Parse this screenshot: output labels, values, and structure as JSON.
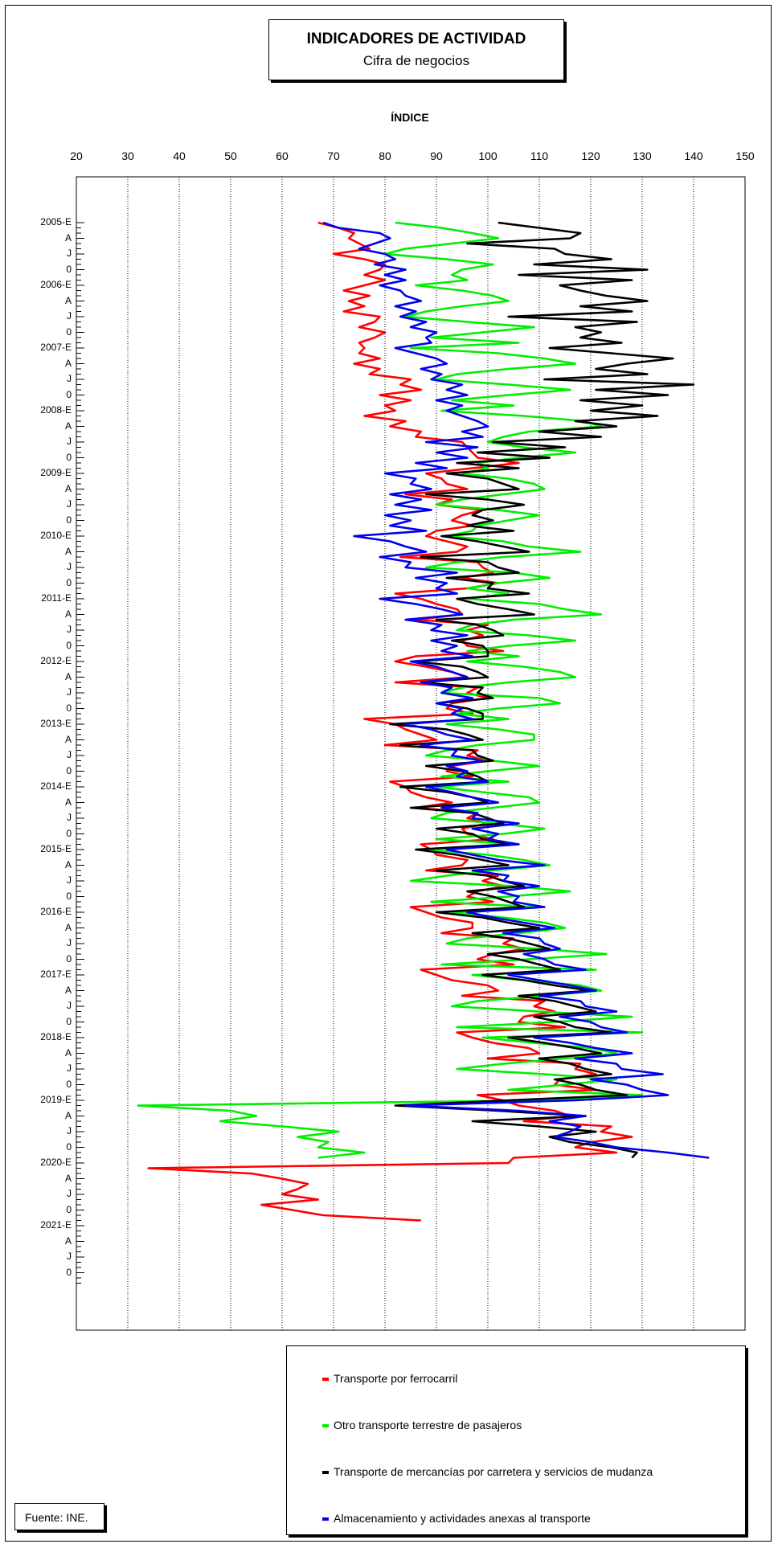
{
  "title": "INDICADORES DE ACTIVIDAD",
  "subtitle": "Cifra de negocios",
  "source": "Fuente: INE.",
  "chart_data": {
    "type": "line",
    "title": "INDICADORES DE ACTIVIDAD",
    "subtitle": "Cifra de negocios",
    "xlabel": "ÍNDICE",
    "ylabel": "",
    "orientation": "vertical-time",
    "xlim": [
      20,
      150
    ],
    "x_ticks": [
      20,
      30,
      40,
      50,
      60,
      70,
      80,
      90,
      100,
      110,
      120,
      130,
      140,
      150
    ],
    "time_range": [
      "2005-01",
      "2021-12"
    ],
    "y_tick_labels": [
      "2005-E",
      "A",
      "J",
      "0",
      "2006-E",
      "A",
      "J",
      "0",
      "2007-E",
      "A",
      "J",
      "0",
      "2008-E",
      "A",
      "J",
      "0",
      "2009-E",
      "A",
      "J",
      "0",
      "2010-E",
      "A",
      "J",
      "0",
      "2011-E",
      "A",
      "J",
      "0",
      "2012-E",
      "A",
      "J",
      "0",
      "2013-E",
      "A",
      "J",
      "0",
      "2014-E",
      "A",
      "J",
      "0",
      "2015-E",
      "A",
      "J",
      "0",
      "2016-E",
      "A",
      "J",
      "0",
      "2017-E",
      "A",
      "J",
      "0",
      "2018-E",
      "A",
      "J",
      "0",
      "2019-E",
      "A",
      "J",
      "0",
      "2020-E",
      "A",
      "J",
      "0",
      "2021-E",
      "A",
      "J",
      "0"
    ],
    "grid": true,
    "legend_position": "bottom",
    "series": [
      {
        "name": "Transporte por ferrocarril",
        "color": "#ff0000",
        "start": "2005-01",
        "values": [
          67,
          71,
          74,
          73,
          75,
          77,
          70,
          76,
          80,
          79,
          76,
          80,
          76,
          72,
          77,
          73,
          76,
          72,
          79,
          78,
          75,
          80,
          78,
          75,
          76,
          75,
          79,
          74,
          79,
          77,
          85,
          83,
          87,
          79,
          85,
          80,
          82,
          76,
          84,
          81,
          87,
          86,
          95,
          96,
          97,
          98,
          106,
          97,
          88,
          91,
          92,
          96,
          84,
          93,
          90,
          99,
          95,
          93,
          97,
          90,
          88,
          92,
          96,
          94,
          83,
          98,
          99,
          101,
          95,
          102,
          96,
          82,
          87,
          90,
          94,
          95,
          86,
          100,
          96,
          99,
          95,
          96,
          103,
          86,
          82,
          88,
          93,
          96,
          82,
          98,
          96,
          100,
          93,
          92,
          97,
          76,
          82,
          84,
          87,
          90,
          80,
          98,
          96,
          100,
          93,
          92,
          97,
          81,
          84,
          85,
          88,
          93,
          86,
          98,
          96,
          100,
          95,
          96,
          101,
          87,
          89,
          90,
          96,
          95,
          88,
          102,
          99,
          103,
          98,
          96,
          101,
          85,
          88,
          91,
          97,
          97,
          91,
          105,
          103,
          107,
          101,
          98,
          105,
          87,
          90,
          93,
          100,
          102,
          95,
          111,
          109,
          113,
          107,
          106,
          115,
          94,
          97,
          101,
          108,
          110,
          100,
          118,
          117,
          121,
          114,
          113,
          121,
          98,
          103,
          106,
          113,
          116,
          107,
          124,
          122,
          128,
          120,
          117,
          125,
          105,
          104,
          34,
          54,
          60,
          65,
          63,
          60,
          67,
          56,
          62,
          68,
          87
        ]
      },
      {
        "name": "Otro transporte terrestre de pasajeros",
        "color": "#00ee00",
        "start": "2005-01",
        "values": [
          82,
          91,
          97,
          102,
          93,
          84,
          80,
          92,
          101,
          95,
          93,
          96,
          86,
          95,
          101,
          104,
          95,
          88,
          84,
          96,
          109,
          99,
          89,
          106,
          85,
          102,
          111,
          117,
          104,
          94,
          90,
          104,
          116,
          104,
          93,
          105,
          91,
          107,
          119,
          122,
          108,
          103,
          100,
          107,
          117,
          106,
          98,
          100,
          95,
          104,
          109,
          111,
          103,
          95,
          90,
          102,
          110,
          104,
          98,
          97,
          92,
          103,
          108,
          118,
          103,
          94,
          88,
          105,
          112,
          102,
          96,
          104,
          96,
          110,
          115,
          122,
          105,
          97,
          94,
          108,
          117,
          104,
          96,
          106,
          96,
          107,
          114,
          117,
          104,
          95,
          91,
          110,
          114,
          102,
          94,
          104,
          92,
          102,
          109,
          109,
          98,
          92,
          88,
          101,
          110,
          100,
          91,
          104,
          90,
          99,
          108,
          110,
          101,
          92,
          89,
          102,
          111,
          103,
          90,
          106,
          88,
          100,
          107,
          112,
          101,
          92,
          85,
          105,
          116,
          104,
          89,
          110,
          93,
          103,
          111,
          115,
          106,
          96,
          92,
          110,
          123,
          108,
          91,
          121,
          97,
          107,
          118,
          122,
          111,
          98,
          93,
          110,
          128,
          113,
          94,
          130,
          99,
          109,
          120,
          125,
          115,
          103,
          94,
          111,
          125,
          115,
          104,
          130,
          110,
          32,
          50,
          55,
          48,
          60,
          71,
          63,
          69,
          67,
          76,
          67
        ]
      },
      {
        "name": "Transporte de mercancías por carretera y servicios de mudanza",
        "color": "#000000",
        "start": "2005-01",
        "values": [
          102,
          110,
          118,
          116,
          96,
          113,
          115,
          124,
          109,
          131,
          106,
          128,
          114,
          118,
          123,
          131,
          118,
          128,
          104,
          129,
          117,
          122,
          118,
          126,
          112,
          124,
          136,
          127,
          121,
          131,
          111,
          140,
          121,
          135,
          118,
          130,
          120,
          133,
          117,
          125,
          110,
          122,
          101,
          115,
          98,
          112,
          94,
          106,
          92,
          100,
          103,
          106,
          88,
          100,
          107,
          99,
          97,
          101,
          96,
          105,
          91,
          98,
          103,
          108,
          87,
          100,
          102,
          106,
          92,
          101,
          100,
          108,
          94,
          98,
          104,
          109,
          90,
          98,
          101,
          103,
          93,
          99,
          100,
          100,
          86,
          95,
          98,
          100,
          87,
          99,
          98,
          101,
          90,
          96,
          99,
          99,
          81,
          92,
          96,
          99,
          83,
          97,
          98,
          101,
          88,
          95,
          98,
          100,
          83,
          92,
          97,
          100,
          85,
          97,
          100,
          103,
          90,
          97,
          99,
          104,
          86,
          94,
          99,
          104,
          90,
          100,
          103,
          107,
          96,
          101,
          104,
          107,
          90,
          99,
          104,
          110,
          97,
          104,
          108,
          112,
          100,
          106,
          110,
          114,
          99,
          107,
          113,
          120,
          106,
          113,
          117,
          121,
          109,
          114,
          117,
          124,
          104,
          111,
          117,
          122,
          110,
          116,
          119,
          124,
          113,
          118,
          121,
          127,
          104,
          82,
          102,
          119,
          97,
          110,
          121,
          112,
          116,
          124,
          129,
          128
        ]
      },
      {
        "name": "Almacenamiento y actividades anexas al transporte",
        "color": "#0000ee",
        "start": "2005-01",
        "values": [
          68,
          71,
          79,
          81,
          78,
          75,
          80,
          82,
          78,
          84,
          80,
          84,
          79,
          83,
          84,
          87,
          82,
          86,
          83,
          88,
          85,
          90,
          88,
          89,
          82,
          86,
          90,
          92,
          87,
          91,
          89,
          95,
          92,
          96,
          90,
          95,
          92,
          95,
          98,
          100,
          95,
          99,
          88,
          98,
          90,
          96,
          86,
          92,
          80,
          86,
          85,
          89,
          81,
          87,
          82,
          89,
          80,
          85,
          81,
          88,
          74,
          81,
          84,
          88,
          79,
          85,
          84,
          94,
          86,
          92,
          90,
          94,
          79,
          86,
          91,
          95,
          84,
          91,
          89,
          96,
          89,
          94,
          91,
          97,
          85,
          90,
          93,
          96,
          87,
          93,
          91,
          97,
          90,
          95,
          93,
          97,
          84,
          89,
          92,
          97,
          87,
          94,
          93,
          99,
          92,
          96,
          94,
          100,
          88,
          93,
          97,
          102,
          91,
          98,
          97,
          106,
          97,
          102,
          100,
          106,
          92,
          97,
          102,
          111,
          97,
          104,
          103,
          110,
          102,
          106,
          105,
          111,
          96,
          101,
          107,
          113,
          103,
          110,
          111,
          114,
          107,
          111,
          113,
          119,
          104,
          110,
          116,
          121,
          110,
          118,
          119,
          125,
          114,
          120,
          122,
          127,
          109,
          116,
          121,
          128,
          117,
          125,
          126,
          134,
          120,
          127,
          130,
          135,
          117,
          84,
          106,
          119,
          112,
          118,
          116,
          113,
          120,
          125,
          135,
          143
        ]
      }
    ]
  }
}
